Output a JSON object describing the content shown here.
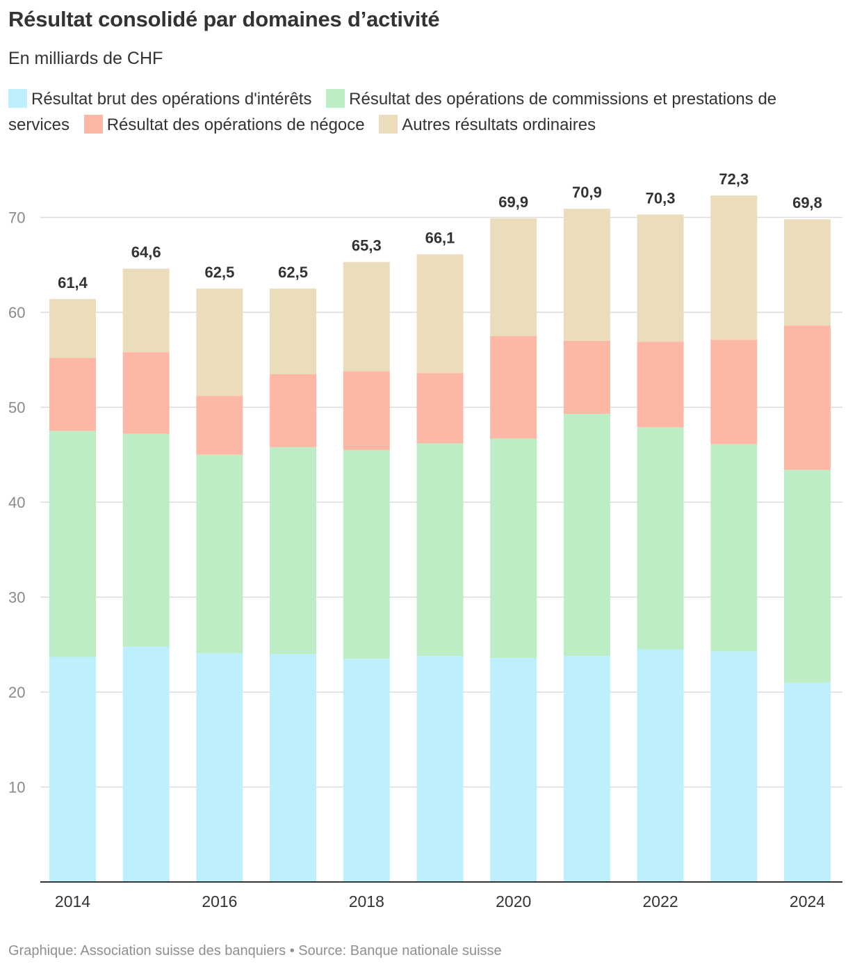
{
  "title": "Résultat consolidé par domaines d’activité",
  "subtitle": "En milliards de CHF",
  "footer": "Graphique: Association suisse des banquiers • Source: Banque nationale suisse",
  "chart_data": {
    "type": "bar",
    "stacked": true,
    "categories": [
      "2014",
      "2015",
      "2016",
      "2017",
      "2018",
      "2019",
      "2020",
      "2021",
      "2022",
      "2023",
      "2024"
    ],
    "x_tick_labels": [
      "2014",
      "2016",
      "2018",
      "2020",
      "2022",
      "2024"
    ],
    "y_ticks": [
      10,
      20,
      30,
      40,
      50,
      60,
      70
    ],
    "ylim": [
      0,
      75
    ],
    "grid": true,
    "legend_position": "top",
    "series": [
      {
        "name": "Résultat brut des opérations d'intérêts",
        "color": "#bdeffd",
        "values": [
          23.7,
          24.8,
          24.1,
          24.0,
          23.5,
          23.8,
          23.6,
          23.8,
          24.5,
          24.3,
          21.0
        ]
      },
      {
        "name": "Résultat des opérations de commissions et prestations de services",
        "color": "#bcedc4",
        "values": [
          23.8,
          22.4,
          20.9,
          21.8,
          22.0,
          22.4,
          23.1,
          25.5,
          23.4,
          21.8,
          22.4
        ]
      },
      {
        "name": "Résultat des opérations de négoce",
        "color": "#fdb7a5",
        "values": [
          7.7,
          8.6,
          6.2,
          7.7,
          8.3,
          7.4,
          10.8,
          7.7,
          9.0,
          11.0,
          15.2
        ]
      },
      {
        "name": "Autres résultats ordinaires",
        "color": "#ebdcbc",
        "values": [
          6.2,
          8.8,
          11.3,
          9.0,
          11.5,
          12.5,
          12.4,
          13.9,
          13.4,
          15.2,
          11.2
        ]
      }
    ],
    "totals": [
      "61,4",
      "64,6",
      "62,5",
      "62,5",
      "65,3",
      "66,1",
      "69,9",
      "70,9",
      "70,3",
      "72,3",
      "69,8"
    ]
  }
}
